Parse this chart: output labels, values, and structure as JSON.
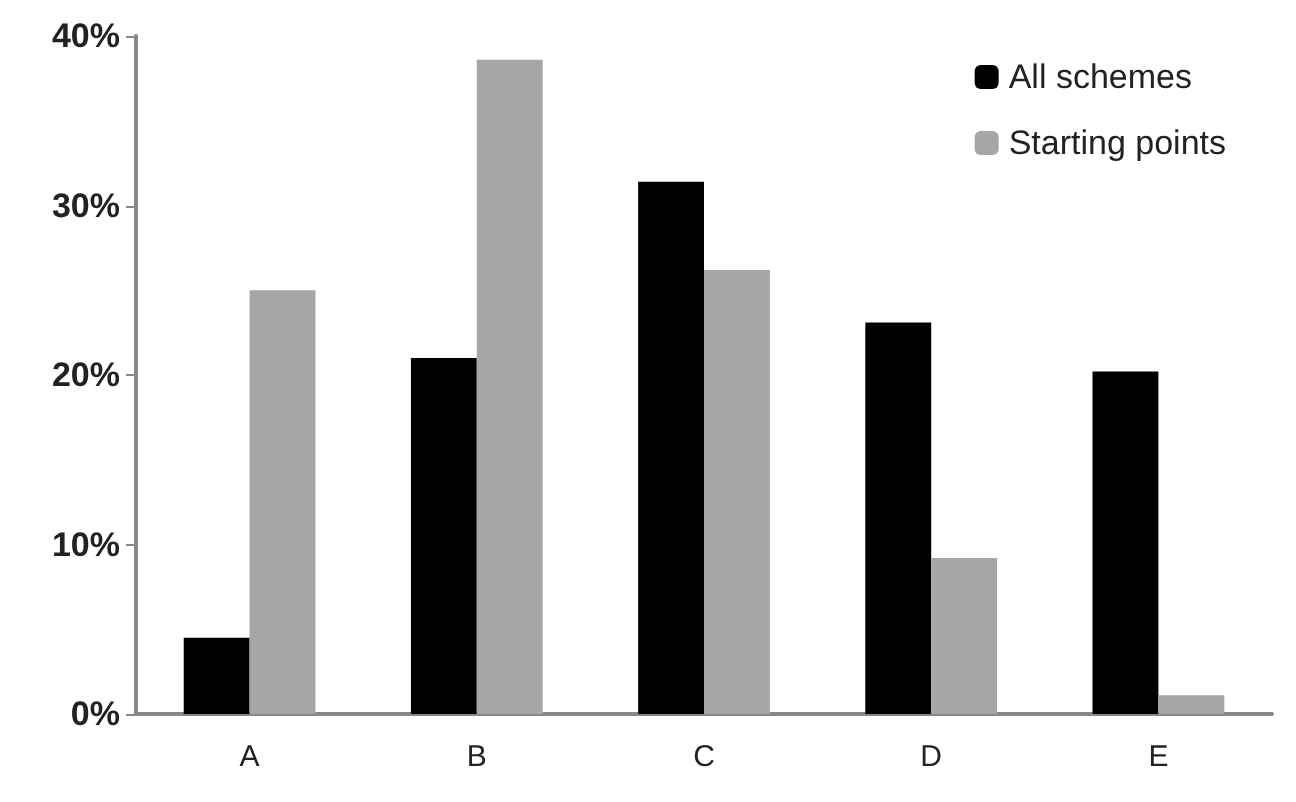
{
  "chart_data": {
    "type": "bar",
    "categories": [
      "A",
      "B",
      "C",
      "D",
      "E"
    ],
    "series": [
      {
        "name": "All schemes",
        "color": "#000000",
        "values": [
          4.5,
          21,
          31.4,
          23.1,
          20.2
        ]
      },
      {
        "name": "Starting points",
        "color": "#a6a6a6",
        "values": [
          25,
          38.6,
          26.2,
          9.2,
          1.1
        ]
      }
    ],
    "ylim": [
      0,
      40
    ],
    "yticks": [
      {
        "value": 0,
        "label": "0%"
      },
      {
        "value": 10,
        "label": "10%"
      },
      {
        "value": 20,
        "label": "20%"
      },
      {
        "value": 30,
        "label": "30%"
      },
      {
        "value": 40,
        "label": "40%"
      }
    ],
    "grid": false,
    "legend": "top right"
  }
}
